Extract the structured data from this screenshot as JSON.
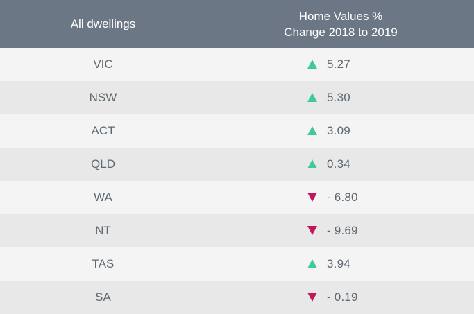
{
  "header": {
    "col1": "All dwellings",
    "col2_line1": "Home Values %",
    "col2_line2": "Change 2018 to 2019"
  },
  "colors": {
    "header_bg": "#6b7784",
    "up": "#3ec9a0",
    "down": "#c2185b"
  },
  "rows": [
    {
      "region": "VIC",
      "direction": "up",
      "value": "5.27"
    },
    {
      "region": "NSW",
      "direction": "up",
      "value": "5.30"
    },
    {
      "region": "ACT",
      "direction": "up",
      "value": "3.09"
    },
    {
      "region": "QLD",
      "direction": "up",
      "value": "0.34"
    },
    {
      "region": "WA",
      "direction": "down",
      "value": "- 6.80"
    },
    {
      "region": "NT",
      "direction": "down",
      "value": "- 9.69"
    },
    {
      "region": "TAS",
      "direction": "up",
      "value": "3.94"
    },
    {
      "region": "SA",
      "direction": "down",
      "value": "- 0.19"
    }
  ]
}
